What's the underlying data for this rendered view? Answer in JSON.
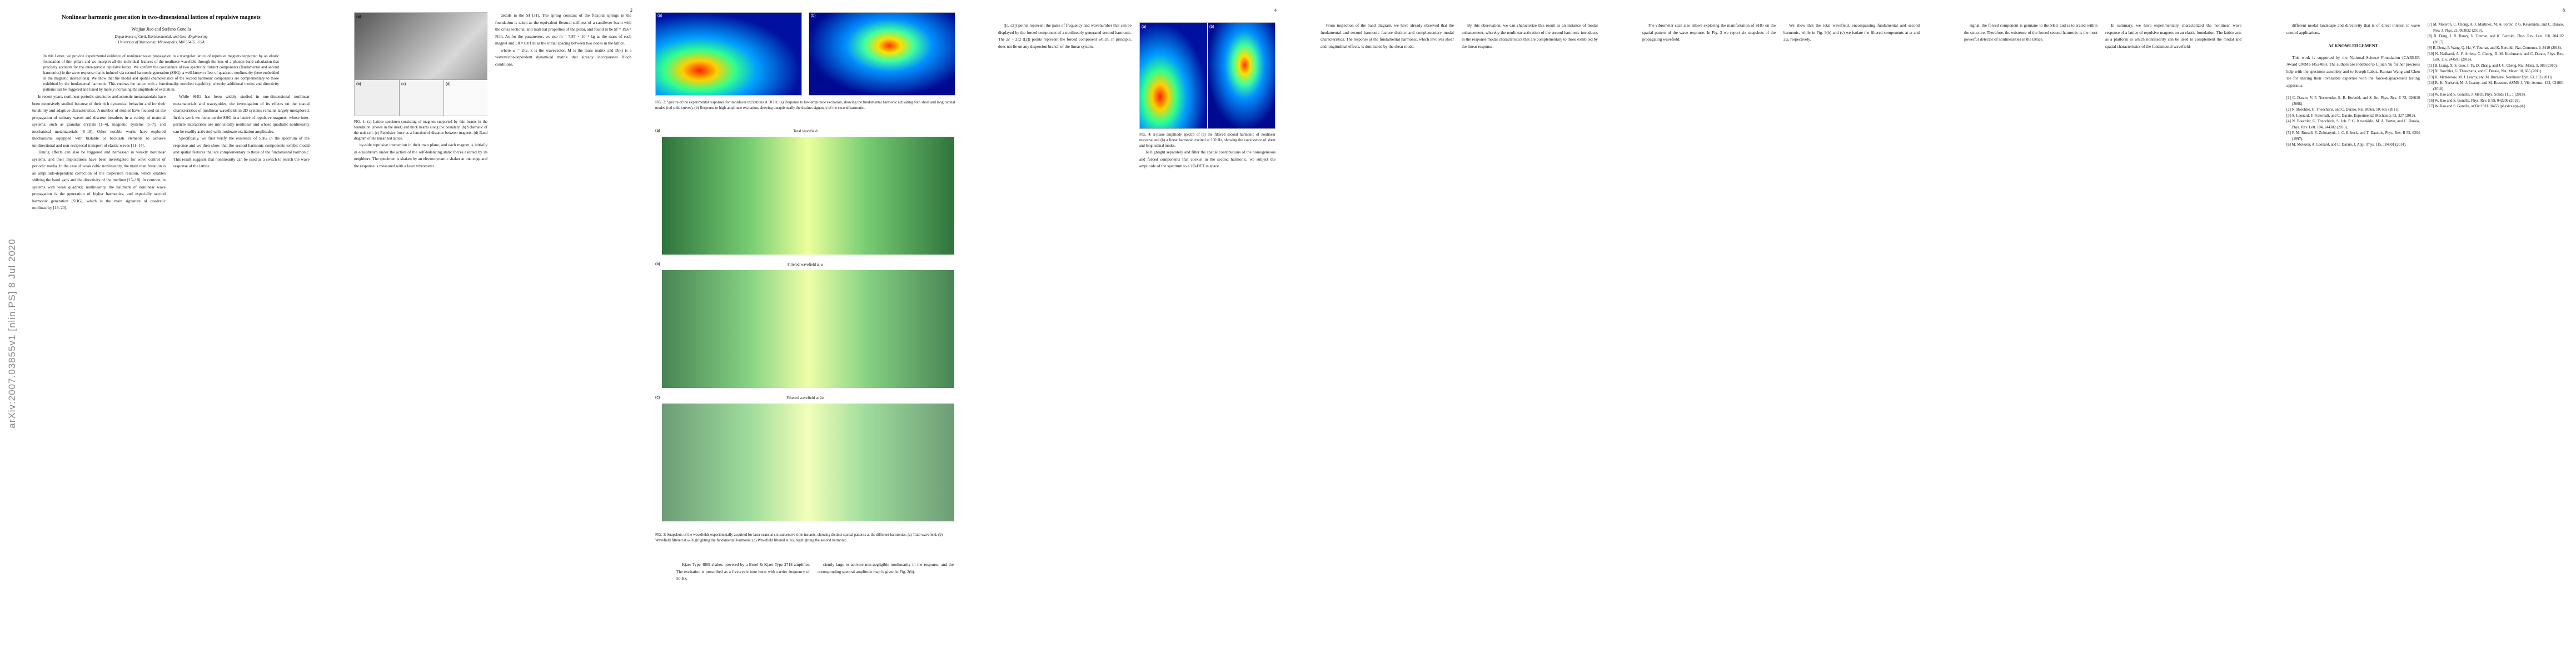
{
  "arxiv_stamp": "arXiv:2007.03855v1  [nlin.PS]  8 Jul 2020",
  "pages": [
    {
      "title": "Nonlinear harmonic generation in two-dimensional lattices of repulsive magnets",
      "authors": "Weijian Jiao and Stefano Gonella",
      "affiliation": [
        "Department of Civil, Environmental, and Geo- Engineering",
        "University of Minnesota, Minneapolis, MN 55455, USA"
      ],
      "abstract": "In this Letter, we provide experimental evidence of nonlinear wave propagation in a triangular lattice of repulsive magnets supported by an elastic foundation of thin pillars and we interpret all the individual features of the nonlinear wavefield through the lens of a phonon band calculation that precisely accounts for the inter-particle repulsive forces. We confirm the coexistence of two spectrally distinct components (fundamental and second harmonics) in the wave response that is induced via second harmonic generation (SHG), a well-known effect of quadratic nonlinearity (here embedded in the magnetic interactions). We show that the modal and spatial characteristics of the second harmonic components are complementary to those exhibited by the fundamental harmonic. This endows the lattice with a functionality enriched capability, whereby additional modes and directivity patterns can be triggered and tuned by merely increasing the amplitude of excitation.",
      "left": [
        "In recent years, nonlinear periodic structures and acoustic metamaterials have been extensively studied because of their rich dynamical behavior and for their tunability and adaptive characteristics. A number of studies have focused on the propagation of solitary waves and discrete breathers in a variety of material systems, such as granular crystals [1–4], magnetic systems [5–7], and mechanical metamaterials [8–10]. Other notable works have explored mechanisms equipped with bistable or backlash elements to achieve unidirectional and non-reciprocal transport of elastic waves [11–14].",
        "Tuning effects can also be triggered and harnessed in weakly nonlinear systems, and their implications have been investigated for wave control of periodic media. In the case of weak cubic nonlinearity, the main manifestation is an amplitude-dependent correction of the dispersion relation, which enables shifting the band gaps and the directivity of the medium [15–18]. In contrast, in systems with weak quadratic nonlinearity, the hallmark of nonlinear wave propagation is the generation of higher harmonics, and especially second harmonic generation (SHG), which is the main signature of quadratic nonlinearity [19, 20]."
      ],
      "right": [
        "While SHG has been widely studied in one-dimensional nonlinear metamaterials and waveguides, the investigation of its effects on the spatial characteristics of nonlinear wavefields in 2D systems remains largely unexplored. In this work we focus on the SHG in a lattice of repulsive magnets, whose inter-particle interactions are intrinsically nonlinear and whose quadratic nonlinearity can be readily activated with moderate excitation amplitudes.",
        "Specifically, we first verify the existence of SHG in the spectrum of the response and we then show that the second harmonic components exhibit modal and spatial features that are complementary to those of the fundamental harmonic. This result suggests that nonlinearity can be used as a switch to enrich the wave response of the lattice."
      ]
    },
    {
      "number": "2",
      "figure": {
        "panels": [
          "(a)",
          "(b)",
          "(c)",
          "(d)"
        ],
        "caption": "FIG. 1: (a) Lattice specimen consisting of magnets supported by thin beams in the foundation (shown in the inset) and thick beams along the boundary. (b) Schematic of the unit cell. (c) Repulsive force as a function of distance between magnets. (d) Band diagram of the linearized lattice."
      },
      "left": [
        "by-side repulsive interaction in their own plane, and each magnet is initially in equilibrium under the action of the self-balancing static forces exerted by its neighbors. The specimen is shaken by an electrodynamic shaker at one edge and the response is measured with a laser vibrometer."
      ],
      "right": [
        "details in the SI [31]. The spring constant of the flexural springs in the foundation is taken as the equivalent flexural stiffness of a cantilever beam with the cross sectional and material properties of the pillar, and found to be kf = 19.67 N/m. As for the parameters, we use m = 7.87 × 10⁻⁴ kg as the mass of each magnet and L0 = 0.01 m as the initial spacing between two nodes in the lattice.",
        "where ω = 2πν, k is the wavevector, M is the mass matrix and D(k) is a wavevector-dependent dynamical matrix that already incorporates Bloch conditions."
      ]
    },
    {
      "figure2": {
        "panels": [
          "(a)",
          "(b)"
        ],
        "caption": "FIG. 2: Spectra of the experimental responses for transducer excitations at 50 Hz: (a) Response to low-amplitude excitation, showing the fundamental harmonic activating both shear and longitudinal modes (red solid curves). (b) Response to high-amplitude excitation, showing unequivocally the distinct signature of the second harmonic."
      },
      "figure3": {
        "panels": [
          "(a)",
          "(b)",
          "(c)"
        ],
        "labels": [
          "Total wavefield",
          "Filtered wavefield at ω",
          "Filtered wavefield at 2ω"
        ],
        "caption": "FIG. 3: Snapshots of the wavefields experimentally acquired for laser scans at six successive time instants, showing distinct spatial patterns at the different harmonics. (a) Total wavefield. (b) Wavefield filtered at ω, highlighting the fundamental harmonic. (c) Wavefield filtered at 2ω, highlighting the second harmonic."
      },
      "left": [
        "Kjaer Type 4809 shaker, powered by a Bruel & Kjaer Type 2718 amplifier. The excitation is prescribed as a five-cycle tone burst with carrier frequency of 50 Hz."
      ],
      "right": [
        "ciently large to activate non-negligible nonlinearity in the response, and the corresponding spectral amplitude map is given in Fig. 2(b)."
      ]
    },
    {
      "number": "4",
      "figure": {
        "panels": [
          "(a)",
          "(b)"
        ],
        "caption": "FIG. 4: k-plane amplitude spectra of (a) the filtered second harmonic of nonlinear response and (b) a linear harmonic excited at 100 Hz, showing the coexistence of shear and longitudinal modes."
      },
      "left": [
        "([ε, ε2]) points represent the pairs of frequency and wavenumber that can be displayed by the forced component of a nonlinearly generated second harmonic. The 2ε − 2ε2 ([2]) points represent the forced component which, in principle, does not lie on any dispersion branch of the linear system."
      ],
      "right": [
        "To highlight separately and filter the spatial contributions of the homogeneous and forced components that coexist in the second harmonic, we subject the amplitude of the spectrum to a 2D-DFT in space."
      ]
    },
    {
      "left": [
        "From inspection of the band diagram, we have already observed that the fundamental and second harmonic feature distinct and complementary modal characteristics. The response at the fundamental harmonic, which involves shear and longitudinal effects, is dominated by the shear mode."
      ],
      "right": [
        "By this observation, we can characterize this result as an instance of modal enhancement, whereby the nonlinear activation of the second harmonic introduces in the response modal characteristics that are complementary to those exhibited by the linear response."
      ]
    },
    {
      "left": [
        "The vibrometer scan also allows exploring the manifestation of SHG on the spatial pattern of the wave response. In Fig. 3 we report six snapshots of the propagating wavefield."
      ],
      "right": [
        "We show that the total wavefield, encompassing fundamental and second harmonic, while in Fig. 3(b) and (c) we isolate the filtered components at ω and 2ω, respectively."
      ]
    },
    {
      "left": [
        "signal, the forced component is germane to the SHG and is tolerated within the structure. Therefore, the existence of the forced second harmonic is the most powerful detector of nonlinearities in the lattice."
      ],
      "right": [
        "In summary, we have experimentally characterized the nonlinear wave response of a lattice of repulsive magnets on an elastic foundation. The lattice acts as a platform in which nonlinearity can be used to complement the modal and spatial characteristics of the fundamental wavefield."
      ]
    },
    {
      "number": "8",
      "left": [
        "different modal landscape and directivity that is of direct interest to wave control applications."
      ],
      "ack_heading": "ACKNOWLEDGEMENT",
      "ack": "This work is supported by the National Science Foundation (CAREER Award CMMI-1452488). The authors are indebted to Lijuan Yu for her precious help with the specimen assembly and to Joseph Labuz, Ruoran Wang and Chen He for sharing their invaluable expertise with the force-displacement testing apparatus.",
      "refs_left": [
        "[1] C. Daraio, V. F. Nesterenko, E. B. Herbold, and S. Jin, Phys. Rev. E 73, 026610 (2006).",
        "[2] N. Boechler, G. Theocharis, and C. Daraio, Nat. Mater. 10, 665 (2011).",
        "[3] A. Leonard, F. Fraternali, and C. Daraio, Experimental Mechanics 53, 327 (2013).",
        "[4] N. Boechler, G. Theocharis, S. Job, P. G. Kevrekidis, M. A. Porter, and C. Daraio, Phys. Rev. Lett. 104, 244302 (2010).",
        "[5] F. M. Russell, Y. Zolotaryuk, J. C. Eilbeck, and T. Dauxois, Phys. Rev. B 55, 6304 (1997).",
        "[6] M. Moleron, A. Leonard, and C. Daraio, J. Appl. Phys. 115, 184901 (2014)."
      ],
      "refs_right": [
        "[7] M. Moleron, C. Chong, A. J. Martinez, M. A. Porter, P. G. Kevrekidis, and C. Daraio, New J. Phys. 21, 063032 (2019).",
        "[8] B. Deng, J. R. Raney, V. Tournat, and K. Bertoldi, Phys. Rev. Lett. 118, 204102 (2017).",
        "[9] B. Deng, P. Wang, Q. He, V. Tournat, and K. Bertoldi, Nat. Commun. 9, 3410 (2018).",
        "[10] N. Nadkarni, A. F. Arrieta, C. Chong, D. M. Kochmann, and C. Daraio, Phys. Rev. Lett. 116, 244501 (2016).",
        "[11] B. Liang, X. S. Guo, J. Tu, D. Zhang, and J. C. Cheng, Nat. Mater. 9, 989 (2010).",
        "[12] N. Boechler, G. Theocharis, and C. Daraio, Nat. Mater. 10, 665 (2011).",
        "[13] K. Manktelow, M. J. Leamy, and M. Ruzzene, Nonlinear Dyn. 63, 193 (2011).",
        "[14] R. K. Narisetti, M. J. Leamy, and M. Ruzzene, ASME J. Vib. Acoust. 132, 031001 (2010).",
        "[15] W. Jiao and S. Gonella, J. Mech. Phys. Solids 111, 1 (2018).",
        "[16] W. Jiao and S. Gonella, Phys. Rev. E 99, 042206 (2019).",
        "[17] W. Jiao and S. Gonella, arXiv:1911.10453 [physics.app-ph]."
      ]
    }
  ]
}
